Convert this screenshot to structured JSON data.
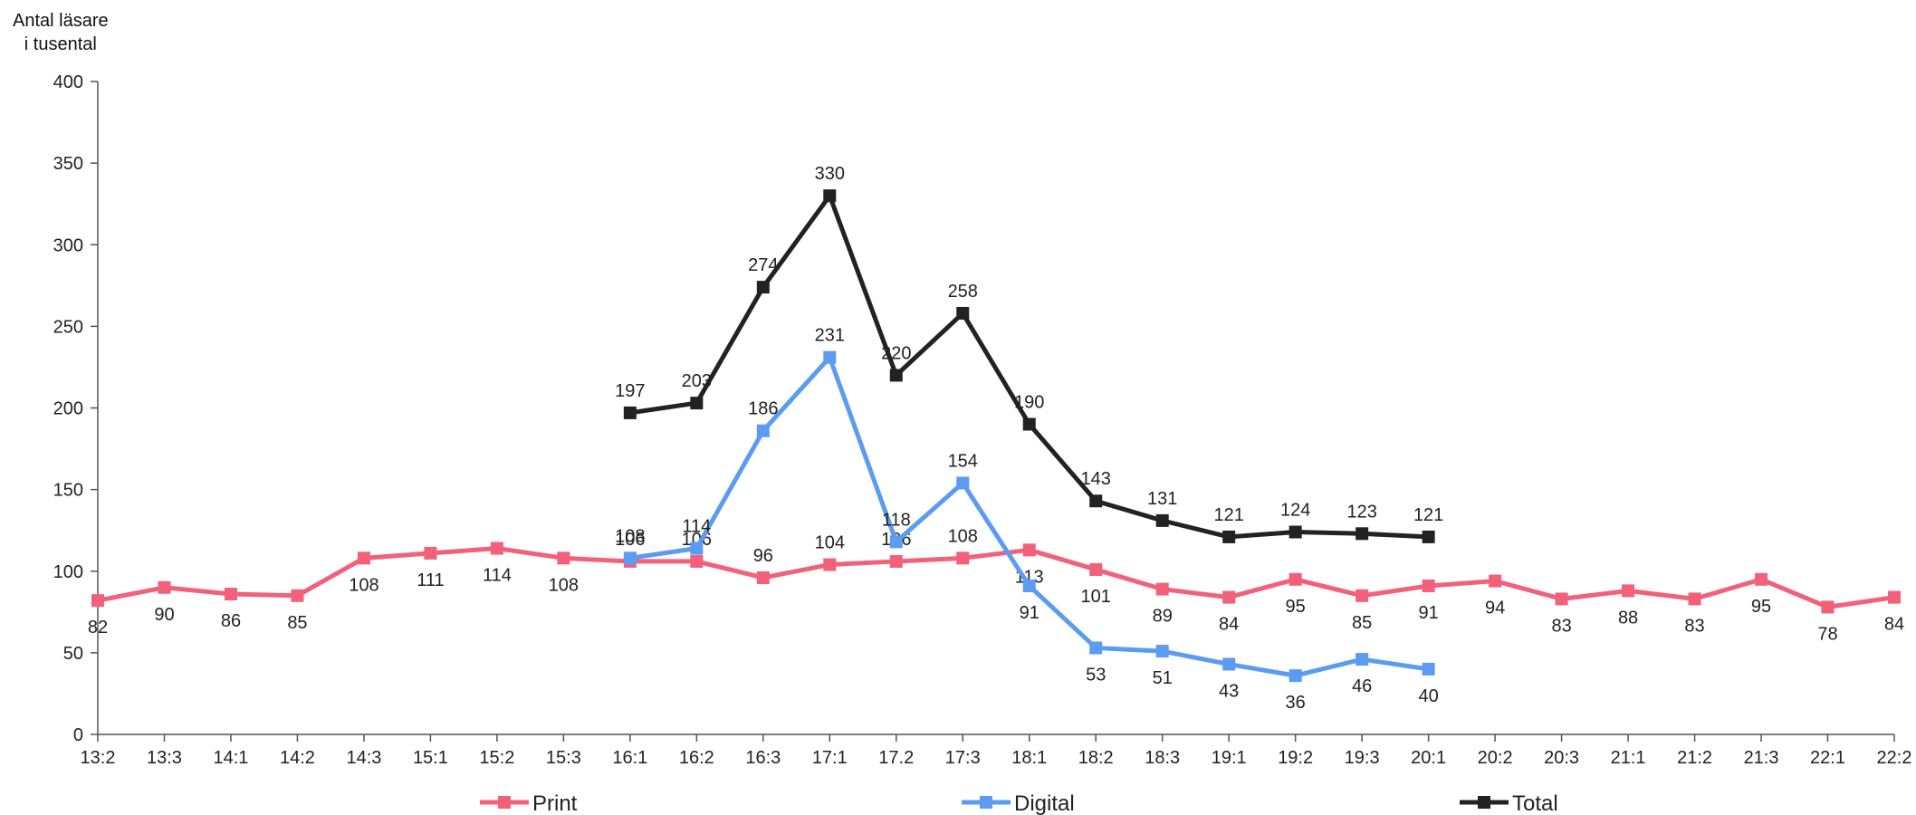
{
  "chart_data": {
    "type": "line",
    "ylabel_lines": [
      "Antal läsare",
      "i tusental"
    ],
    "ylim": [
      0,
      400
    ],
    "yticks": [
      0,
      50,
      100,
      150,
      200,
      250,
      300,
      350,
      400
    ],
    "categories": [
      "13:2",
      "13:3",
      "14:1",
      "14:2",
      "14:3",
      "15:1",
      "15:2",
      "15:3",
      "16:1",
      "16:2",
      "16:3",
      "17:1",
      "17.2",
      "17:3",
      "18:1",
      "18:2",
      "18:3",
      "19:1",
      "19:2",
      "19:3",
      "20:1",
      "20:2",
      "20:3",
      "21:1",
      "21:2",
      "21:3",
      "22:1",
      "22:2"
    ],
    "grid": false,
    "legend_position": "bottom",
    "series": [
      {
        "name": "Print",
        "color": "#F2607A",
        "values": [
          82,
          90,
          86,
          85,
          108,
          111,
          114,
          108,
          106,
          106,
          96,
          104,
          106,
          108,
          113,
          101,
          89,
          84,
          95,
          85,
          91,
          94,
          83,
          88,
          83,
          95,
          78,
          84
        ]
      },
      {
        "name": "Digital",
        "color": "#5B9CF2",
        "values": [
          null,
          null,
          null,
          null,
          null,
          null,
          null,
          null,
          108,
          114,
          186,
          231,
          118,
          154,
          91,
          53,
          51,
          43,
          36,
          46,
          40,
          null,
          null,
          null,
          null,
          null,
          null,
          null
        ]
      },
      {
        "name": "Total",
        "color": "#222222",
        "values": [
          null,
          null,
          null,
          null,
          null,
          null,
          null,
          null,
          197,
          203,
          274,
          330,
          220,
          258,
          190,
          143,
          131,
          121,
          124,
          123,
          121,
          null,
          null,
          null,
          null,
          null,
          null,
          null
        ]
      }
    ]
  }
}
